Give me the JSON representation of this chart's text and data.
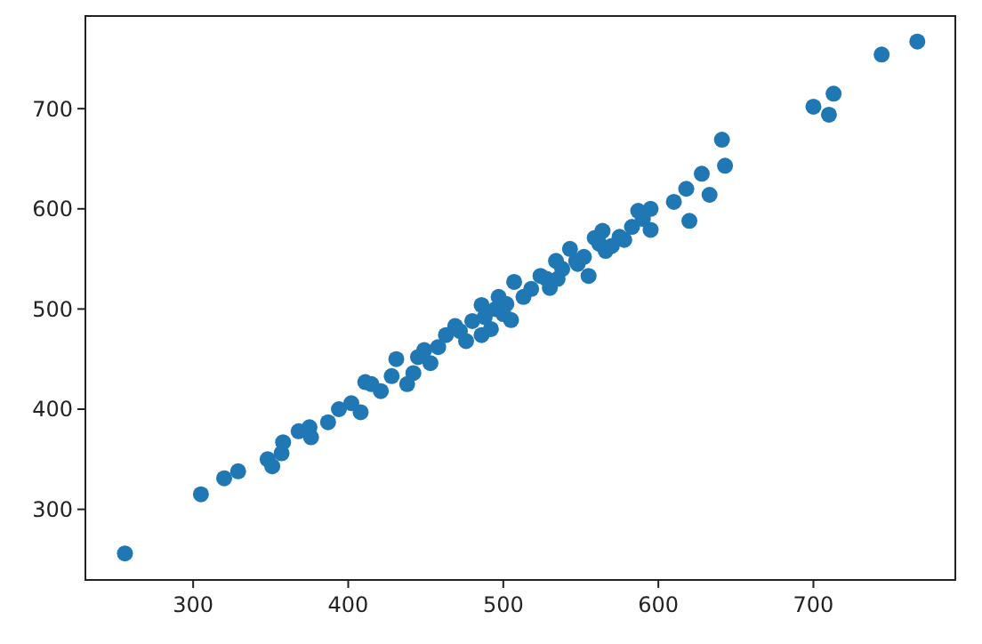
{
  "chart_data": {
    "type": "scatter",
    "marker": "circle",
    "color": "#1f77b4",
    "x": [
      256,
      305,
      320,
      329,
      348,
      351,
      357,
      358,
      368,
      375,
      376,
      387,
      394,
      402,
      408,
      411,
      415,
      421,
      428,
      431,
      438,
      442,
      449,
      453,
      463,
      469,
      476,
      486,
      486,
      492,
      497,
      505,
      507,
      513,
      524,
      530,
      534,
      543,
      547,
      555,
      559,
      564,
      570,
      578,
      587,
      595,
      595,
      610,
      618,
      620,
      628,
      633,
      641,
      643,
      700,
      710,
      713,
      744,
      767,
      445,
      458,
      472,
      480,
      495,
      502,
      518,
      528,
      538,
      552,
      562,
      575,
      583,
      590,
      500,
      488,
      535,
      548,
      566
    ],
    "values": [
      256,
      315,
      331,
      338,
      350,
      343,
      356,
      367,
      378,
      382,
      372,
      387,
      400,
      406,
      397,
      427,
      425,
      418,
      433,
      450,
      425,
      436,
      459,
      446,
      474,
      483,
      468,
      474,
      504,
      480,
      512,
      489,
      527,
      512,
      533,
      521,
      548,
      560,
      548,
      533,
      571,
      578,
      563,
      569,
      598,
      600,
      579,
      607,
      620,
      588,
      635,
      614,
      669,
      643,
      702,
      694,
      715,
      754,
      767,
      452,
      462,
      478,
      488,
      500,
      505,
      520,
      530,
      540,
      552,
      565,
      572,
      582,
      590,
      495,
      492,
      530,
      545,
      558
    ],
    "xlim": [
      230.5,
      791.5
    ],
    "ylim": [
      229.5,
      792.5
    ],
    "xticks": [
      300,
      400,
      500,
      600,
      700
    ],
    "yticks": [
      300,
      400,
      500,
      600,
      700
    ]
  }
}
